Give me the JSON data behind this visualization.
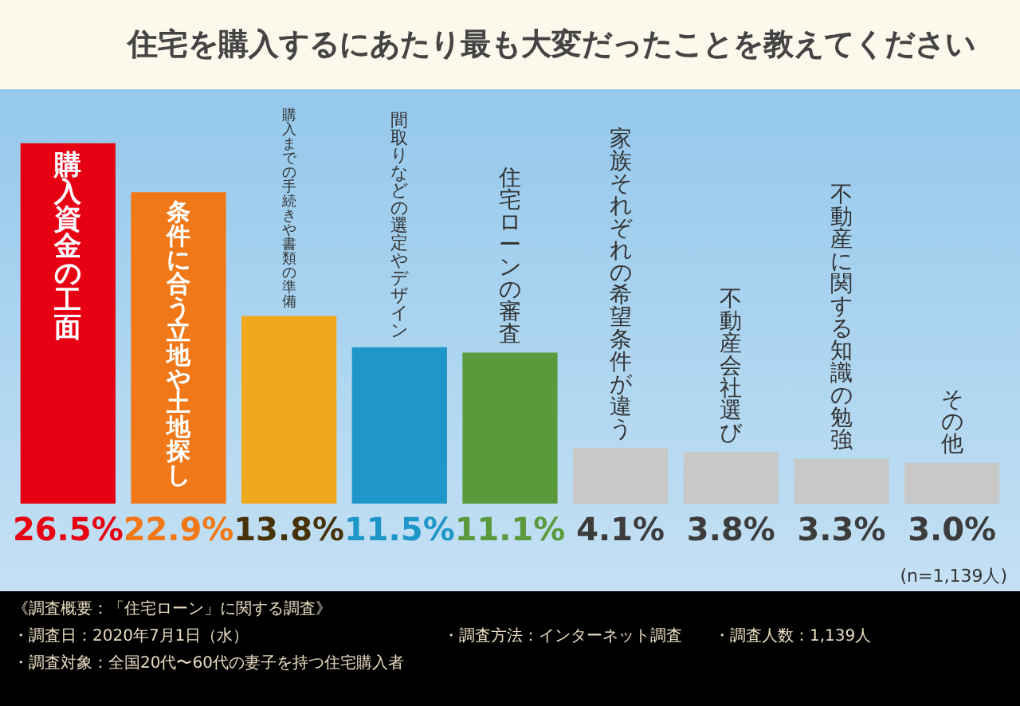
{
  "chart_data": {
    "type": "bar",
    "title": "住宅を購入するにあたり最も大変だったことを教えてください",
    "categories": [
      "購入資金の工面",
      "条件に合う立地や土地探し",
      "購入までの手続きや書類の準備",
      "間取りなどの選定やデザイン",
      "住宅ローンの審査",
      "家族それぞれの希望条件が違う",
      "不動産会社選び",
      "不動産に関する知識の勉強",
      "その他"
    ],
    "values": [
      26.5,
      22.9,
      13.8,
      11.5,
      11.1,
      4.1,
      3.8,
      3.3,
      3.0
    ],
    "colors": [
      "#e60012",
      "#f07818",
      "#f0a81e",
      "#1e96c8",
      "#5a9a3c",
      "#c8c8c8",
      "#c8c8c8",
      "#c8c8c8",
      "#c8c8c8"
    ],
    "value_labels": [
      "26.5%",
      "22.9%",
      "13.8%",
      "11.5%",
      "11.1%",
      "4.1%",
      "3.8%",
      "3.3%",
      "3.0%"
    ],
    "legend": false,
    "annotations": [
      "(n=1,139人)",
      "《調査概要：「住宅ローン」に関する調査》",
      "・調査日：2020年7月1日（水）",
      "・調査方法：インターネット調査",
      "・調査人数：1,139人",
      "・調査対象：全国20代〜60代の妻子を持つ住宅購入者"
    ]
  }
}
